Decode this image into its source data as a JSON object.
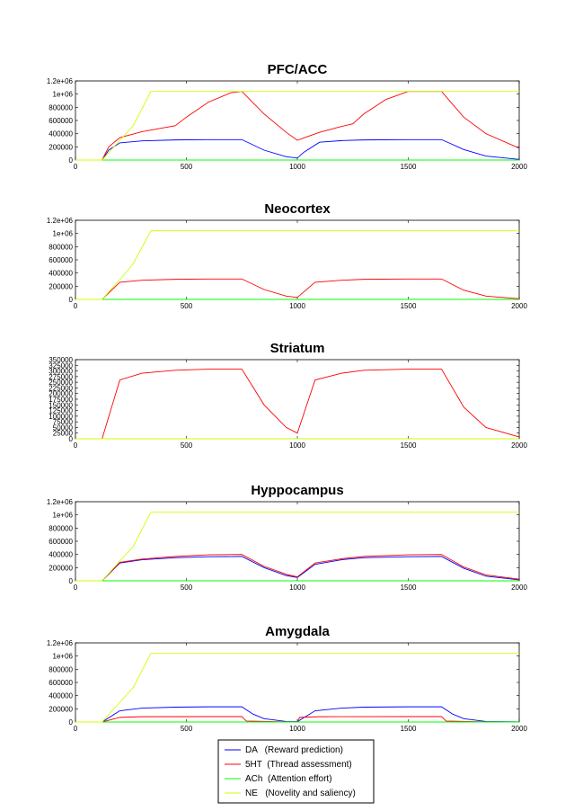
{
  "chart_data": [
    {
      "type": "line",
      "title": "PFC/ACC",
      "xlim": [
        0,
        2000
      ],
      "ylim": [
        0,
        1200000
      ],
      "xticks": [
        0,
        500,
        1000,
        1500,
        2000
      ],
      "xtick_labels": [
        "0",
        "500",
        "1000",
        "1500",
        "2000"
      ],
      "yticks": [
        0,
        200000,
        400000,
        600000,
        800000,
        1000000,
        1200000
      ],
      "ytick_labels": [
        "0",
        "200000",
        "400000",
        "600000",
        "800000",
        "1e+06",
        "1.2e+06"
      ],
      "series": [
        {
          "name": "DA",
          "x": [
            0,
            120,
            150,
            200,
            300,
            450,
            600,
            750,
            850,
            950,
            1000,
            1030,
            1100,
            1200,
            1300,
            1500,
            1650,
            1750,
            1850,
            2000
          ],
          "values": [
            0,
            0,
            150000,
            260000,
            290000,
            305000,
            310000,
            310000,
            150000,
            50000,
            30000,
            120000,
            270000,
            295000,
            305000,
            310000,
            310000,
            160000,
            60000,
            10000
          ]
        },
        {
          "name": "5HT",
          "x": [
            0,
            120,
            150,
            200,
            300,
            450,
            500,
            600,
            700,
            750,
            850,
            950,
            1000,
            1050,
            1100,
            1200,
            1250,
            1300,
            1400,
            1500,
            1650,
            1750,
            1850,
            2000
          ],
          "values": [
            0,
            0,
            200000,
            340000,
            430000,
            520000,
            650000,
            880000,
            1020000,
            1040000,
            700000,
            420000,
            300000,
            360000,
            420000,
            510000,
            550000,
            700000,
            920000,
            1040000,
            1040000,
            650000,
            400000,
            180000
          ]
        },
        {
          "name": "ACh",
          "x": [
            0,
            2000
          ],
          "values": [
            0,
            0
          ]
        },
        {
          "name": "NE",
          "x": [
            0,
            120,
            200,
            260,
            340,
            2000
          ],
          "values": [
            0,
            0,
            300000,
            520000,
            1040000,
            1040000
          ]
        }
      ]
    },
    {
      "type": "line",
      "title": "Neocortex",
      "xlim": [
        0,
        2000
      ],
      "ylim": [
        0,
        1200000
      ],
      "xticks": [
        0,
        500,
        1000,
        1500,
        2000
      ],
      "xtick_labels": [
        "0",
        "500",
        "1000",
        "1500",
        "2000"
      ],
      "yticks": [
        0,
        200000,
        400000,
        600000,
        800000,
        1000000,
        1200000
      ],
      "ytick_labels": [
        "0",
        "200000",
        "400000",
        "600000",
        "800000",
        "1e+06",
        "1.2e+06"
      ],
      "series": [
        {
          "name": "DA",
          "x": [
            0,
            2000
          ],
          "values": [
            0,
            0
          ]
        },
        {
          "name": "5HT",
          "x": [
            0,
            120,
            200,
            300,
            450,
            600,
            750,
            850,
            950,
            1000,
            1080,
            1200,
            1300,
            1500,
            1650,
            1750,
            1850,
            2000
          ],
          "values": [
            0,
            0,
            260000,
            290000,
            305000,
            310000,
            310000,
            150000,
            50000,
            30000,
            260000,
            290000,
            305000,
            310000,
            310000,
            140000,
            50000,
            10000
          ]
        },
        {
          "name": "ACh",
          "x": [
            0,
            2000
          ],
          "values": [
            0,
            0
          ]
        },
        {
          "name": "NE",
          "x": [
            0,
            120,
            200,
            260,
            340,
            2000
          ],
          "values": [
            0,
            0,
            300000,
            540000,
            1040000,
            1040000
          ]
        }
      ]
    },
    {
      "type": "line",
      "title": "Striatum",
      "xlim": [
        0,
        2000
      ],
      "ylim": [
        0,
        350000
      ],
      "xticks": [
        0,
        500,
        1000,
        1500,
        2000
      ],
      "xtick_labels": [
        "0",
        "500",
        "1000",
        "1500",
        "2000"
      ],
      "yticks": [
        0,
        25000,
        50000,
        75000,
        100000,
        125000,
        150000,
        175000,
        200000,
        225000,
        250000,
        275000,
        300000,
        325000,
        350000
      ],
      "ytick_labels": [
        "0",
        "25000",
        "50000",
        "75000",
        "100000",
        "125000",
        "150000",
        "175000",
        "200000",
        "225000",
        "250000",
        "275000",
        "300000",
        "325000",
        "350000"
      ],
      "series": [
        {
          "name": "DA",
          "x": [
            0,
            2000
          ],
          "values": [
            0,
            0
          ]
        },
        {
          "name": "5HT",
          "x": [
            0,
            120,
            200,
            300,
            450,
            600,
            750,
            850,
            950,
            1000,
            1080,
            1200,
            1300,
            1500,
            1650,
            1750,
            1850,
            2000
          ],
          "values": [
            0,
            0,
            260000,
            290000,
            303000,
            308000,
            308000,
            150000,
            50000,
            25000,
            260000,
            290000,
            303000,
            308000,
            308000,
            140000,
            50000,
            8000
          ]
        },
        {
          "name": "ACh",
          "x": [
            0,
            2000
          ],
          "values": [
            0,
            0
          ]
        },
        {
          "name": "NE",
          "x": [
            0,
            2000
          ],
          "values": [
            0,
            0
          ]
        }
      ]
    },
    {
      "type": "line",
      "title": "Hyppocampus",
      "xlim": [
        0,
        2000
      ],
      "ylim": [
        0,
        1200000
      ],
      "xticks": [
        0,
        500,
        1000,
        1500,
        2000
      ],
      "xtick_labels": [
        "0",
        "500",
        "1000",
        "1500",
        "2000"
      ],
      "yticks": [
        0,
        200000,
        400000,
        600000,
        800000,
        1000000,
        1200000
      ],
      "ytick_labels": [
        "0",
        "200000",
        "400000",
        "600000",
        "800000",
        "1e+06",
        "1.2e+06"
      ],
      "series": [
        {
          "name": "DA",
          "x": [
            0,
            120,
            200,
            300,
            450,
            600,
            750,
            850,
            950,
            1000,
            1080,
            1200,
            1300,
            1500,
            1650,
            1750,
            1850,
            2000
          ],
          "values": [
            0,
            0,
            270000,
            320000,
            350000,
            365000,
            370000,
            200000,
            80000,
            50000,
            250000,
            320000,
            350000,
            365000,
            370000,
            190000,
            70000,
            15000
          ]
        },
        {
          "name": "5HT",
          "x": [
            0,
            120,
            200,
            300,
            450,
            600,
            750,
            850,
            950,
            1000,
            1080,
            1200,
            1300,
            1500,
            1650,
            1750,
            1850,
            2000
          ],
          "values": [
            0,
            0,
            280000,
            330000,
            370000,
            395000,
            400000,
            220000,
            100000,
            60000,
            270000,
            335000,
            370000,
            395000,
            400000,
            210000,
            90000,
            25000
          ]
        },
        {
          "name": "ACh",
          "x": [
            0,
            2000
          ],
          "values": [
            0,
            0
          ]
        },
        {
          "name": "NE",
          "x": [
            0,
            120,
            200,
            260,
            340,
            2000
          ],
          "values": [
            0,
            0,
            300000,
            520000,
            1040000,
            1040000
          ]
        }
      ]
    },
    {
      "type": "line",
      "title": "Amygdala",
      "xlim": [
        0,
        2000
      ],
      "ylim": [
        0,
        1200000
      ],
      "xticks": [
        0,
        500,
        1000,
        1500,
        2000
      ],
      "xtick_labels": [
        "0",
        "500",
        "1000",
        "1500",
        "2000"
      ],
      "yticks": [
        0,
        200000,
        400000,
        600000,
        800000,
        1000000,
        1200000
      ],
      "ytick_labels": [
        "0",
        "200000",
        "400000",
        "600000",
        "800000",
        "1e+06",
        "1.2e+06"
      ],
      "series": [
        {
          "name": "DA",
          "x": [
            0,
            120,
            200,
            300,
            450,
            600,
            750,
            800,
            850,
            950,
            1000,
            1080,
            1200,
            1300,
            1500,
            1650,
            1700,
            1750,
            1850,
            2000
          ],
          "values": [
            0,
            0,
            170000,
            210000,
            225000,
            230000,
            230000,
            120000,
            50000,
            8000,
            5000,
            170000,
            210000,
            225000,
            230000,
            230000,
            120000,
            50000,
            8000,
            2000
          ]
        },
        {
          "name": "5HT",
          "x": [
            0,
            120,
            200,
            300,
            600,
            750,
            770,
            950,
            1000,
            1010,
            1100,
            1500,
            1650,
            1670,
            1850,
            2000
          ],
          "values": [
            0,
            0,
            70000,
            80000,
            82000,
            82000,
            15000,
            2000,
            0,
            70000,
            80000,
            82000,
            82000,
            15000,
            2000,
            0
          ]
        },
        {
          "name": "ACh",
          "x": [
            0,
            2000
          ],
          "values": [
            0,
            0
          ]
        },
        {
          "name": "NE",
          "x": [
            0,
            120,
            200,
            260,
            340,
            2000
          ],
          "values": [
            0,
            0,
            300000,
            520000,
            1040000,
            1040000
          ]
        }
      ]
    }
  ],
  "legend": {
    "entries": [
      {
        "label": "DA   (Reward prediction)",
        "color": "#0000ff"
      },
      {
        "label": "5HT  (Thread assessment)",
        "color": "#ff0000"
      },
      {
        "label": "ACh  (Attention effort)",
        "color": "#00ff00"
      },
      {
        "label": "NE   (Novelity and saliency)",
        "color": "#ccff00"
      }
    ]
  },
  "colors": {
    "DA": "#0000ff",
    "5HT": "#ff0000",
    "ACh": "#00ff00",
    "NE": "#ccff00"
  }
}
